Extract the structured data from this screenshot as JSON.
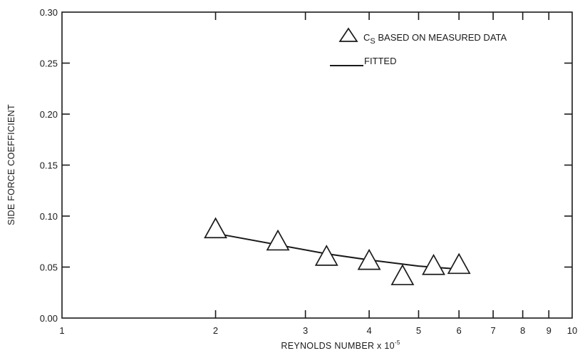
{
  "chart_data": {
    "type": "scatter",
    "xlabel": "REYNOLDS NUMBER x 10",
    "xlabel_exponent": "-5",
    "ylabel": "SIDE FORCE COEFFICIENT",
    "x_scale": "log",
    "xlim": [
      1,
      10
    ],
    "ylim": [
      0.0,
      0.3
    ],
    "x_ticks": [
      1,
      2,
      3,
      4,
      5,
      6,
      7,
      8,
      9,
      10
    ],
    "x_tick_labels": [
      "1",
      "2",
      "3",
      "4",
      "5",
      "6",
      "7",
      "8",
      "9",
      "10"
    ],
    "y_ticks": [
      0.0,
      0.05,
      0.1,
      0.15,
      0.2,
      0.25,
      0.3
    ],
    "y_tick_labels": [
      "0.00",
      "0.05",
      "0.10",
      "0.15",
      "0.20",
      "0.25",
      "0.30"
    ],
    "grid": false,
    "legend": {
      "placement": "top-right",
      "entries": [
        {
          "marker": "triangle",
          "label_main": "C",
          "label_sub": "S",
          "label_rest": " BASED ON MEASURED DATA"
        },
        {
          "marker": "line",
          "label": "FITTED"
        }
      ]
    },
    "series": [
      {
        "kind": "markers",
        "marker": "triangle",
        "x": [
          2.0,
          2.65,
          3.3,
          4.0,
          4.65,
          5.35,
          6.0
        ],
        "y": [
          0.086,
          0.074,
          0.059,
          0.055,
          0.04,
          0.05,
          0.051
        ]
      },
      {
        "kind": "line",
        "x": [
          2.0,
          3.3,
          4.0,
          5.0,
          6.0
        ],
        "y": [
          0.083,
          0.063,
          0.057,
          0.051,
          0.048
        ]
      }
    ]
  }
}
